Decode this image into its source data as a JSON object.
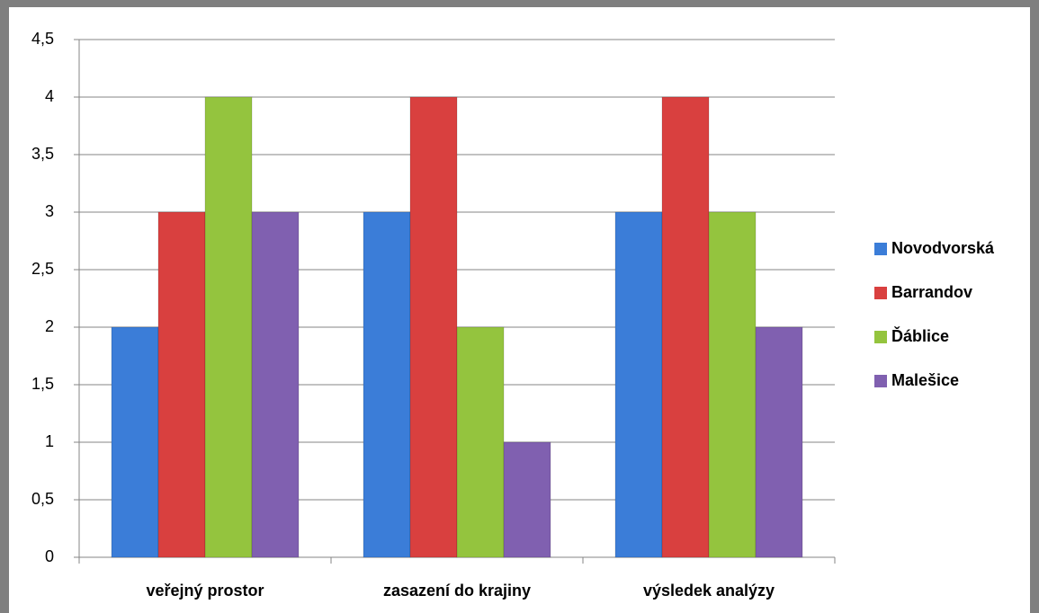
{
  "chart_data": {
    "type": "bar",
    "categories": [
      "veřejný prostor",
      "zasazení do krajiny",
      "výsledek analýzy"
    ],
    "series": [
      {
        "name": "Novodvorská",
        "color": "#3b7dd8",
        "values": [
          2,
          3,
          3
        ]
      },
      {
        "name": "Barrandov",
        "color": "#d9403f",
        "values": [
          3,
          4,
          4
        ]
      },
      {
        "name": "Ďáblice",
        "color": "#94c43e",
        "values": [
          4,
          2,
          3
        ]
      },
      {
        "name": "Malešice",
        "color": "#8060b0",
        "values": [
          3,
          1,
          2
        ]
      }
    ],
    "ylim": [
      0,
      4.5
    ],
    "yticks": [
      0,
      {
        "value": 0.5,
        "label": "0,5"
      },
      1,
      {
        "value": 1.5,
        "label": "1,5"
      },
      2,
      {
        "value": 2.5,
        "label": "2,5"
      },
      3,
      {
        "value": 3.5,
        "label": "3,5"
      },
      4,
      {
        "value": 4.5,
        "label": "4,5"
      }
    ],
    "grid": true,
    "legend": "right"
  }
}
